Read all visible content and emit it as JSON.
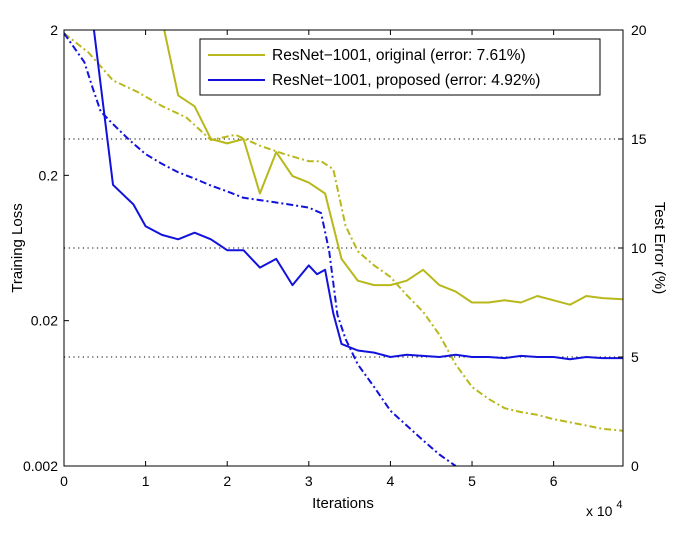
{
  "chart_data": {
    "type": "line",
    "title": "",
    "xlabel": "Iterations",
    "x_multiplier_label": "x 10",
    "x_multiplier_exponent": "4",
    "ylabel_left": "Training Loss",
    "ylabel_right": "Test Error (%)",
    "x_unit": 10000,
    "xlim": [
      0,
      6.85
    ],
    "ylim_left": [
      0.002,
      2
    ],
    "yscale_left": "log",
    "ylim_right": [
      0,
      20
    ],
    "x_ticks": [
      0,
      1,
      2,
      3,
      4,
      5,
      6
    ],
    "y_left_ticks": [
      {
        "value": 2,
        "label": "2"
      },
      {
        "value": 0.2,
        "label": "0.2"
      },
      {
        "value": 0.02,
        "label": "0.02"
      },
      {
        "value": 0.002,
        "label": "0.002"
      }
    ],
    "y_right_ticks": [
      {
        "value": 0,
        "label": "0"
      },
      {
        "value": 5,
        "label": "5"
      },
      {
        "value": 10,
        "label": "10"
      },
      {
        "value": 15,
        "label": "15"
      },
      {
        "value": 20,
        "label": "20"
      }
    ],
    "right_gridlines": [
      5,
      10,
      15
    ],
    "grid": "dotted horizontal at right-axis ticks",
    "legend_position": "top-right",
    "series": [
      {
        "name": "ResNet−1001, original (error: 7.61%)",
        "color": "#b8b81c",
        "test_error": {
          "x": [
            0.0,
            0.4,
            0.6,
            1.0,
            1.2,
            1.4,
            1.6,
            1.8,
            2.0,
            2.2,
            2.4,
            2.6,
            2.8,
            3.0,
            3.2,
            3.4,
            3.6,
            3.8,
            4.0,
            4.2,
            4.4,
            4.6,
            4.8,
            5.0,
            5.2,
            5.4,
            5.6,
            5.8,
            6.0,
            6.2,
            6.4,
            6.6,
            6.85
          ],
          "y": [
            20.5,
            20.5,
            20.5,
            20.5,
            20.5,
            17.0,
            16.5,
            15.0,
            14.8,
            15.0,
            12.5,
            14.4,
            13.3,
            13.0,
            12.5,
            9.5,
            8.5,
            8.3,
            8.3,
            8.5,
            9.0,
            8.3,
            8.0,
            7.5,
            7.5,
            7.6,
            7.5,
            7.8,
            7.6,
            7.4,
            7.8,
            7.7,
            7.65
          ]
        },
        "training_loss": {
          "x": [
            0.0,
            0.3,
            0.6,
            0.9,
            1.2,
            1.5,
            1.8,
            2.1,
            2.4,
            2.7,
            3.0,
            3.15,
            3.3,
            3.45,
            3.6,
            3.8,
            4.0,
            4.2,
            4.4,
            4.6,
            4.8,
            5.0,
            5.2,
            5.4,
            5.6,
            5.8,
            6.0,
            6.2,
            6.4,
            6.6,
            6.85
          ],
          "y": [
            1.9,
            1.4,
            0.9,
            0.75,
            0.6,
            0.5,
            0.35,
            0.38,
            0.32,
            0.28,
            0.25,
            0.25,
            0.22,
            0.09,
            0.06,
            0.048,
            0.04,
            0.03,
            0.023,
            0.016,
            0.01,
            0.007,
            0.0058,
            0.005,
            0.0047,
            0.0045,
            0.0042,
            0.004,
            0.0038,
            0.0036,
            0.0035
          ]
        }
      },
      {
        "name": "ResNet−1001, proposed (error: 4.92%)",
        "color": "#1212dd",
        "test_error": {
          "x": [
            0.0,
            0.35,
            0.6,
            0.85,
            1.0,
            1.2,
            1.4,
            1.6,
            1.8,
            2.0,
            2.2,
            2.4,
            2.6,
            2.8,
            3.0,
            3.1,
            3.2,
            3.3,
            3.4,
            3.6,
            3.8,
            4.0,
            4.2,
            4.4,
            4.6,
            4.8,
            5.0,
            5.2,
            5.4,
            5.6,
            5.8,
            6.0,
            6.2,
            6.4,
            6.6,
            6.85
          ],
          "y": [
            20.5,
            20.5,
            12.9,
            12.0,
            11.0,
            10.6,
            10.4,
            10.7,
            10.4,
            9.9,
            9.9,
            9.1,
            9.5,
            8.3,
            9.2,
            8.8,
            9.0,
            7.0,
            5.6,
            5.3,
            5.2,
            5.0,
            5.1,
            5.05,
            5.0,
            5.1,
            5.0,
            5.0,
            4.95,
            5.05,
            5.0,
            5.0,
            4.9,
            5.0,
            4.95,
            4.95
          ]
        },
        "training_loss": {
          "x": [
            0.0,
            0.25,
            0.35,
            0.45,
            0.6,
            0.8,
            1.0,
            1.2,
            1.4,
            1.6,
            1.8,
            2.0,
            2.2,
            2.4,
            2.6,
            2.8,
            3.0,
            3.15,
            3.25,
            3.35,
            3.45,
            3.6,
            3.8,
            4.0,
            4.2,
            4.4,
            4.6,
            4.8
          ],
          "y": [
            1.9,
            1.2,
            0.8,
            0.55,
            0.45,
            0.35,
            0.28,
            0.24,
            0.21,
            0.19,
            0.17,
            0.155,
            0.14,
            0.135,
            0.13,
            0.125,
            0.12,
            0.11,
            0.06,
            0.022,
            0.015,
            0.01,
            0.007,
            0.0048,
            0.0038,
            0.003,
            0.0024,
            0.002
          ]
        }
      }
    ]
  }
}
